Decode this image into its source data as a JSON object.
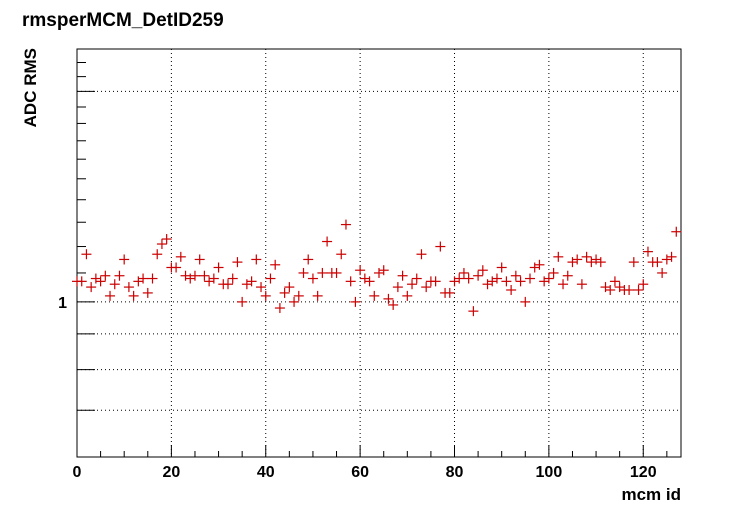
{
  "chart_data": {
    "type": "scatter",
    "title": "rmsperMCM_DetID259",
    "xlabel": "mcm id",
    "ylabel": "ADC RMS",
    "xlim": [
      0,
      128
    ],
    "ylim": [
      0.6,
      2.3
    ],
    "y_scale": "log",
    "grid": true,
    "marker": "cross",
    "marker_color": "#cc0000",
    "x_ticks": [
      0,
      20,
      40,
      60,
      80,
      100,
      120
    ],
    "x_tick_labels": [
      "0",
      "20",
      "40",
      "60",
      "80",
      "100",
      "120"
    ],
    "y_tick_labels": [
      {
        "value": 1,
        "label": "1"
      }
    ],
    "series": [
      {
        "x": [
          0,
          1,
          2,
          3,
          4,
          5,
          6,
          7,
          8,
          9,
          10,
          11,
          12,
          13,
          14,
          15,
          16,
          17,
          18,
          19,
          20,
          21,
          22,
          23,
          24,
          25,
          26,
          27,
          28,
          29,
          30,
          31,
          32,
          33,
          34,
          35,
          36,
          37,
          38,
          39,
          40,
          41,
          42,
          43,
          44,
          45,
          46,
          47,
          48,
          49,
          50,
          51,
          52,
          53,
          54,
          55,
          56,
          57,
          58,
          59,
          60,
          61,
          62,
          63,
          64,
          65,
          66,
          67,
          68,
          69,
          70,
          71,
          72,
          73,
          74,
          75,
          76,
          77,
          78,
          79,
          80,
          81,
          82,
          83,
          84,
          85,
          86,
          87,
          88,
          89,
          90,
          91,
          92,
          93,
          94,
          95,
          96,
          97,
          98,
          99,
          100,
          101,
          102,
          103,
          104,
          105,
          106,
          107,
          108,
          109,
          110,
          111,
          112,
          113,
          114,
          115,
          116,
          117,
          118,
          119,
          120,
          121,
          122,
          123,
          124,
          125,
          126,
          127
        ],
        "y": [
          1.07,
          1.07,
          1.17,
          1.05,
          1.08,
          1.07,
          1.09,
          1.02,
          1.06,
          1.09,
          1.15,
          1.05,
          1.02,
          1.07,
          1.08,
          1.03,
          1.08,
          1.17,
          1.21,
          1.23,
          1.12,
          1.12,
          1.16,
          1.09,
          1.08,
          1.09,
          1.15,
          1.09,
          1.07,
          1.08,
          1.12,
          1.06,
          1.06,
          1.08,
          1.14,
          1.0,
          1.06,
          1.07,
          1.15,
          1.05,
          1.02,
          1.08,
          1.13,
          0.98,
          1.03,
          1.05,
          1.0,
          1.02,
          1.1,
          1.15,
          1.08,
          1.02,
          1.1,
          1.22,
          1.1,
          1.1,
          1.17,
          1.29,
          1.07,
          1.0,
          1.11,
          1.08,
          1.07,
          1.02,
          1.1,
          1.11,
          1.01,
          0.99,
          1.05,
          1.09,
          1.02,
          1.06,
          1.08,
          1.17,
          1.05,
          1.07,
          1.07,
          1.2,
          1.03,
          1.03,
          1.07,
          1.08,
          1.1,
          1.08,
          0.97,
          1.09,
          1.11,
          1.06,
          1.07,
          1.08,
          1.12,
          1.07,
          1.04,
          1.09,
          1.07,
          1.0,
          1.08,
          1.12,
          1.13,
          1.07,
          1.08,
          1.1,
          1.16,
          1.06,
          1.09,
          1.14,
          1.15,
          1.06,
          1.16,
          1.14,
          1.15,
          1.14,
          1.05,
          1.04,
          1.07,
          1.05,
          1.04,
          1.04,
          1.14,
          1.04,
          1.06,
          1.18,
          1.14,
          1.14,
          1.1,
          1.15,
          1.16,
          1.26
        ]
      }
    ]
  }
}
